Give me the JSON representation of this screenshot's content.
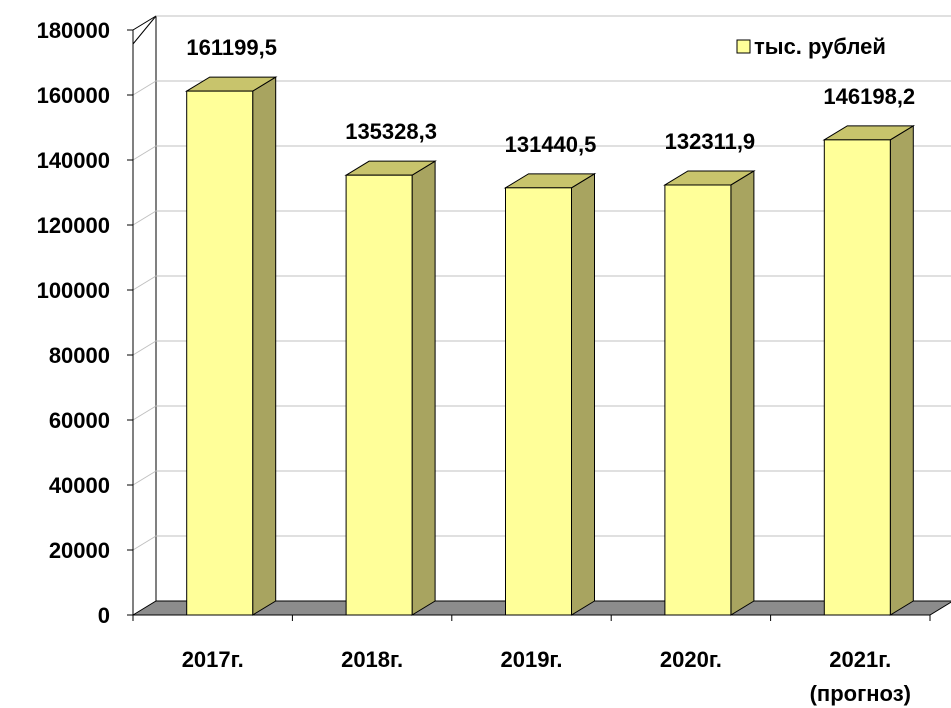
{
  "chart_data": {
    "type": "bar",
    "style": "3d-column",
    "categories": [
      "2017г.",
      "2018г.",
      "2019г.",
      "2020г.",
      "2021г. (прогноз)"
    ],
    "category_lines": [
      [
        "2017г."
      ],
      [
        "2018г."
      ],
      [
        "2019г."
      ],
      [
        "2020г."
      ],
      [
        "2021г.",
        "(прогноз)"
      ]
    ],
    "series": [
      {
        "name": "тыс. рублей",
        "values": [
          161199.5,
          135328.3,
          131440.5,
          132311.9,
          146198.2
        ],
        "labels": [
          "161199,5",
          "135328,3",
          "131440,5",
          "132311,9",
          "146198,2"
        ]
      }
    ],
    "ylim": [
      0,
      180000
    ],
    "yticks": [
      0,
      20000,
      40000,
      60000,
      80000,
      100000,
      120000,
      140000,
      160000,
      180000
    ],
    "grid": true,
    "legend_position": "top-right",
    "colors": {
      "bar_front": "#ffff99",
      "bar_side": "#a8a460",
      "bar_top": "#c8c46c",
      "floor": "#8c8c8c",
      "grid": "#c0c0c0",
      "axis": "#000000"
    }
  }
}
